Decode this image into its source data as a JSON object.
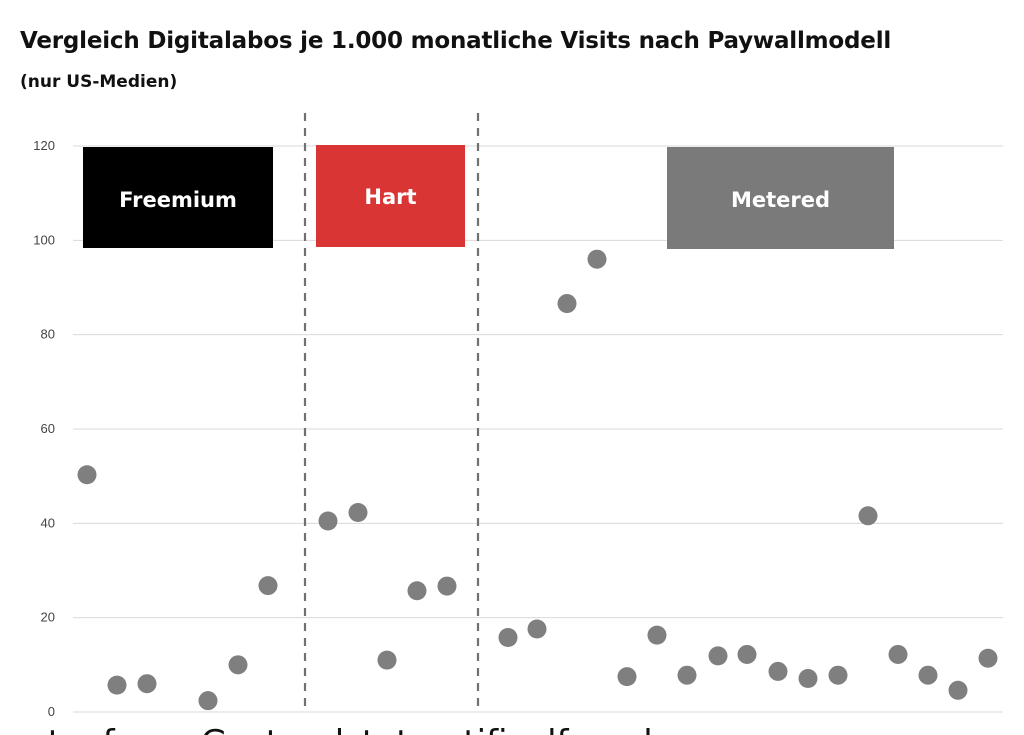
{
  "chart_data": {
    "type": "scatter",
    "title": "Vergleich Digitalabos je 1.000 monatliche Visits nach Paywallmodell",
    "subtitle": "(nur US-Medien)",
    "ylim": [
      0,
      120
    ],
    "yticks": [
      0,
      20,
      40,
      60,
      80,
      100,
      120
    ],
    "grid": true,
    "groups": [
      {
        "label": "Freemium",
        "color": "#000000",
        "values": [
          50.3,
          5.7,
          6.0,
          2.4,
          10.0,
          26.8
        ]
      },
      {
        "label": "Hart",
        "color": "#d93535",
        "values": [
          40.5,
          42.3,
          11.0,
          25.7,
          26.7
        ]
      },
      {
        "label": "Metered",
        "color": "#7a7a7a",
        "values": [
          15.8,
          17.6,
          86.6,
          96.0,
          7.5,
          16.3,
          7.8,
          11.9,
          12.2,
          8.6,
          7.1,
          7.8,
          41.6,
          12.2,
          7.8,
          4.6,
          11.4
        ]
      }
    ],
    "marker_color": "#7f7f7f"
  },
  "footer_cutoff_text": "stoofmon Gastoralstatmatificalfemaksom"
}
